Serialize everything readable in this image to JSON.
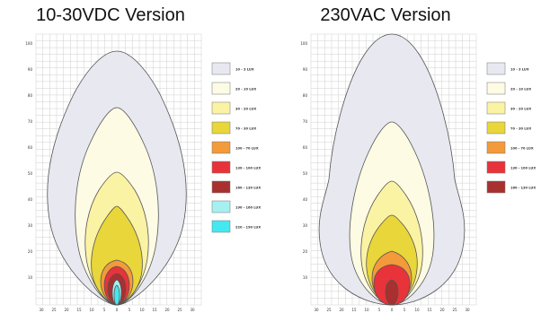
{
  "panels": [
    {
      "title": "10-30VDC Version",
      "y_ticks": [
        "100",
        "90",
        "80",
        "70",
        "60",
        "50",
        "40",
        "30",
        "20",
        "10"
      ],
      "x_ticks": [
        "30",
        "25",
        "20",
        "15",
        "10",
        "5",
        "0",
        "5",
        "10",
        "15",
        "20",
        "25",
        "30"
      ],
      "legend": [
        {
          "label": "10 - 3 LUX",
          "color": "#e8e8f0"
        },
        {
          "label": "20 - 10 LUX",
          "color": "#fdfbe4"
        },
        {
          "label": "30 - 20 LUX",
          "color": "#fbf3a4"
        },
        {
          "label": "70 - 30 LUX",
          "color": "#e8d63a"
        },
        {
          "label": "100 - 70 LUX",
          "color": "#f39a3a"
        },
        {
          "label": "130 - 100 LUX",
          "color": "#e8333a"
        },
        {
          "label": "160 - 130 LUX",
          "color": "#a8302e"
        },
        {
          "label": "190 - 160 LUX",
          "color": "#a6f0f0"
        },
        {
          "label": "220 - 190 LUX",
          "color": "#44e8f0"
        }
      ]
    },
    {
      "title": "230VAC Version",
      "y_ticks": [
        "100",
        "90",
        "80",
        "70",
        "60",
        "50",
        "40",
        "30",
        "20",
        "10"
      ],
      "x_ticks": [
        "30",
        "25",
        "20",
        "15",
        "10",
        "5",
        "0",
        "5",
        "10",
        "15",
        "20",
        "25",
        "30"
      ],
      "legend": [
        {
          "label": "10 - 3 LUX",
          "color": "#e8e8f0"
        },
        {
          "label": "20 - 10 LUX",
          "color": "#fdfbe4"
        },
        {
          "label": "30 - 20 LUX",
          "color": "#fbf3a4"
        },
        {
          "label": "70 - 30 LUX",
          "color": "#e8d63a"
        },
        {
          "label": "100 - 70 LUX",
          "color": "#f39a3a"
        },
        {
          "label": "130 - 100 LUX",
          "color": "#e8333a"
        },
        {
          "label": "160 - 130 LUX",
          "color": "#a8302e"
        }
      ]
    }
  ]
}
